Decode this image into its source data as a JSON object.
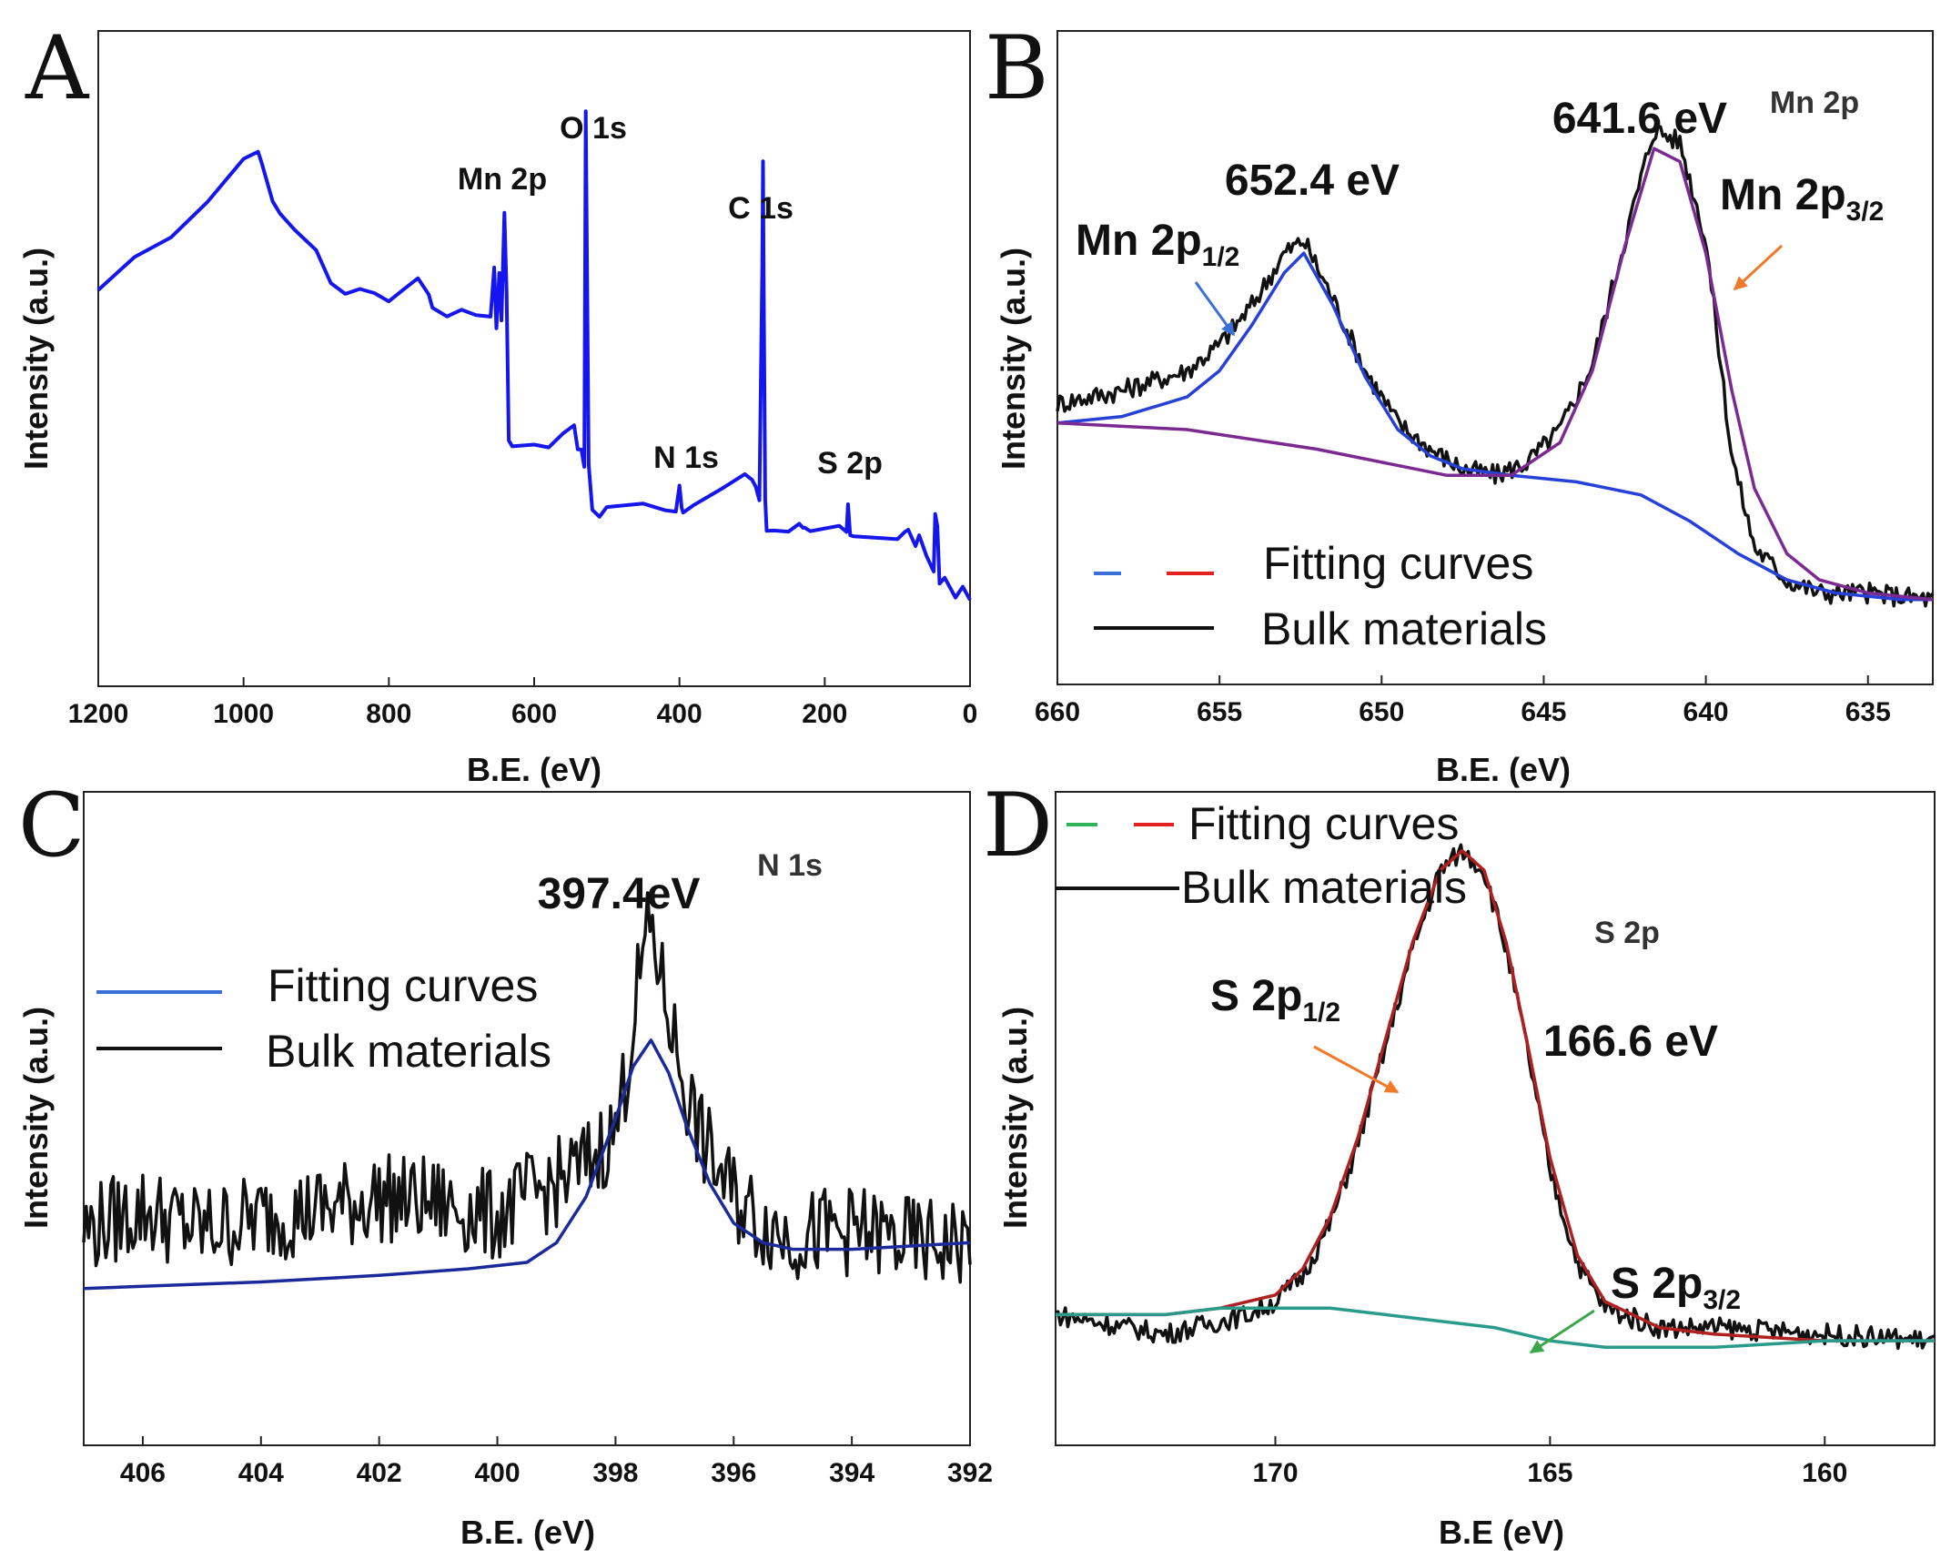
{
  "chart_data": [
    {
      "id": "A",
      "type": "line",
      "panel_label": "A",
      "xlabel": "B.E. (eV)",
      "ylabel": "Intensity (a.u.)",
      "xlim": [
        1200,
        0
      ],
      "ylim": [
        0,
        100
      ],
      "xticks": [
        "1200",
        "1000",
        "800",
        "600",
        "400",
        "200",
        "0"
      ],
      "color": "#1515ee",
      "peak_labels": [
        {
          "text": "Mn 2p",
          "x": 640,
          "y": 76
        },
        {
          "text": "O 1s",
          "x": 530,
          "y": 87
        },
        {
          "text": "C 1s",
          "x": 285,
          "y": 72
        },
        {
          "text": "N 1s",
          "x": 400,
          "y": 34
        },
        {
          "text": "S 2p",
          "x": 168,
          "y": 34
        }
      ],
      "series": [
        {
          "name": "Survey spectrum",
          "x": [
            1200,
            1150,
            1100,
            1050,
            1000,
            980,
            975,
            960,
            950,
            930,
            900,
            880,
            860,
            840,
            820,
            800,
            780,
            760,
            745,
            740,
            720,
            700,
            680,
            660,
            655,
            652,
            648,
            645,
            641,
            638,
            635,
            630,
            600,
            580,
            560,
            545,
            540,
            535,
            531,
            529,
            525,
            520,
            510,
            500,
            450,
            420,
            405,
            400,
            397,
            395,
            380,
            340,
            310,
            300,
            295,
            290,
            286,
            285,
            284,
            282,
            280,
            270,
            250,
            235,
            230,
            228,
            220,
            180,
            170,
            168,
            165,
            160,
            100,
            90,
            85,
            75,
            70,
            60,
            50,
            48,
            45,
            42,
            35,
            20,
            10,
            0
          ],
          "y": [
            60,
            65,
            69,
            74,
            80,
            82,
            80,
            74,
            72,
            70,
            67,
            61,
            60,
            61,
            60,
            59,
            61,
            62,
            60,
            58,
            57,
            57,
            57,
            56,
            64,
            55,
            63,
            56,
            72,
            60,
            38,
            37,
            37,
            37,
            38,
            40,
            36,
            36,
            33,
            88,
            34,
            27,
            26,
            27,
            28,
            27,
            27,
            31,
            27,
            27,
            28,
            30,
            32,
            31,
            30,
            28,
            64,
            80,
            60,
            28,
            24,
            24,
            24,
            25,
            24,
            24,
            24,
            24,
            23,
            28,
            23,
            23,
            23,
            23,
            24,
            21,
            23,
            20,
            18,
            26,
            24,
            16,
            16,
            14,
            15,
            13
          ]
        }
      ]
    },
    {
      "id": "B",
      "type": "line",
      "panel_label": "B",
      "region_label": "Mn 2p",
      "xlabel": "B.E. (eV)",
      "ylabel": "Intensity (a.u.)",
      "xlim": [
        660,
        633
      ],
      "ylim": [
        0,
        100
      ],
      "xticks": [
        "660",
        "655",
        "650",
        "645",
        "640",
        "635"
      ],
      "peaks": [
        {
          "position": "652.4 eV",
          "x": 652.4,
          "name_main": "Mn 2p",
          "name_sub": "1/2"
        },
        {
          "position": "641.6 eV",
          "x": 641.6,
          "name_main": "Mn 2p",
          "name_sub": "3/2"
        }
      ],
      "legend": [
        {
          "label": "Fitting curves",
          "colors": [
            "#3a6fd8",
            "#e52020"
          ]
        },
        {
          "label": "Bulk materials",
          "colors": [
            "#111111"
          ]
        }
      ],
      "series": [
        {
          "name": "Bulk materials",
          "color": "#111111",
          "noisy": true,
          "x": [
            660,
            658,
            656,
            655,
            654,
            653,
            652.4,
            651.5,
            650.5,
            649.5,
            648.5,
            647.5,
            646.5,
            645.5,
            644.5,
            643.5,
            642.5,
            641.6,
            640.8,
            640,
            639.2,
            638.5,
            637.5,
            636.5,
            635,
            633
          ],
          "y": [
            43,
            45,
            48,
            52,
            58,
            66,
            68,
            59,
            48,
            40,
            36,
            33,
            32,
            34,
            39,
            49,
            68,
            85,
            83,
            68,
            35,
            21,
            16,
            14,
            14,
            13
          ]
        },
        {
          "name": "Fitting curve (blue)",
          "color": "#2740d8",
          "x": [
            660,
            658,
            656,
            655,
            654,
            653,
            652.4,
            651.5,
            650.5,
            649.5,
            648.5,
            647.5,
            646,
            644,
            642,
            640.5,
            639,
            637.5,
            636,
            634,
            633
          ],
          "y": [
            40,
            41,
            44,
            48,
            55,
            63,
            66,
            58,
            47,
            39,
            35,
            33,
            32,
            31,
            29,
            25,
            20,
            16,
            14,
            13,
            13
          ]
        },
        {
          "name": "Fitting curve (purple)",
          "color": "#7a2a90",
          "x": [
            660,
            656,
            652,
            648,
            646,
            644.5,
            643.5,
            642.5,
            641.6,
            640.8,
            640,
            639.2,
            638.5,
            637.5,
            636.5,
            635,
            633
          ],
          "y": [
            40,
            39,
            36,
            32,
            32,
            37,
            48,
            67,
            82,
            80,
            66,
            45,
            30,
            20,
            16,
            14,
            13
          ]
        }
      ]
    },
    {
      "id": "C",
      "type": "line",
      "panel_label": "C",
      "region_label": "N 1s",
      "xlabel": "B.E. (eV)",
      "ylabel": "Intensity (a.u.)",
      "xlim": [
        407,
        392
      ],
      "ylim": [
        0,
        100
      ],
      "xticks": [
        "406",
        "404",
        "402",
        "400",
        "398",
        "396",
        "394",
        "392"
      ],
      "peaks": [
        {
          "position": "397.4eV",
          "x": 397.4
        }
      ],
      "legend": [
        {
          "label": "Fitting curves",
          "colors": [
            "#3a6fd8"
          ]
        },
        {
          "label": "Bulk materials",
          "colors": [
            "#111111"
          ]
        }
      ],
      "series": [
        {
          "name": "Bulk materials",
          "color": "#111111",
          "noisy": true,
          "x": [
            407,
            406,
            405,
            404,
            403,
            402,
            401,
            400,
            399.5,
            399,
            398.5,
            398,
            397.8,
            397.6,
            397.4,
            397.2,
            397,
            396.8,
            396.5,
            396,
            395.5,
            395,
            394,
            393,
            392
          ],
          "y": [
            33,
            36,
            33,
            35,
            36,
            38,
            37,
            35,
            38,
            40,
            43,
            48,
            58,
            72,
            80,
            70,
            62,
            54,
            46,
            38,
            34,
            32,
            33,
            31,
            31
          ]
        },
        {
          "name": "Fitting curve",
          "color": "#1a2a9a",
          "x": [
            407,
            404,
            402,
            400.5,
            399.5,
            399,
            398.5,
            398,
            397.7,
            397.4,
            397.1,
            396.8,
            396.4,
            396,
            395.5,
            395,
            394,
            392
          ],
          "y": [
            24,
            25,
            26,
            27,
            28,
            31,
            38,
            50,
            58,
            62,
            57,
            49,
            40,
            34,
            31,
            30,
            30,
            31
          ]
        }
      ]
    },
    {
      "id": "D",
      "type": "line",
      "panel_label": "D",
      "region_label": "S 2p",
      "xlabel": "B.E (eV)",
      "ylabel": "Intensity (a.u.)",
      "xlim": [
        174,
        158
      ],
      "ylim": [
        0,
        100
      ],
      "xticks": [
        "170",
        "165",
        "160"
      ],
      "peaks": [
        {
          "position": "166.6 eV",
          "x": 166.6,
          "name_main": "S 2p",
          "name_sub": "1/2"
        },
        {
          "position": "",
          "x": 165.4,
          "name_main": "S 2p",
          "name_sub": "3/2"
        }
      ],
      "legend": [
        {
          "label": "Fitting curves",
          "colors": [
            "#2fb35a",
            "#e52020"
          ]
        },
        {
          "label": "Bulk materials",
          "colors": [
            "#111111"
          ]
        }
      ],
      "series": [
        {
          "name": "Bulk materials",
          "color": "#111111",
          "noisy": true,
          "x": [
            174,
            172,
            170.5,
            170,
            169.5,
            169,
            168.5,
            168,
            167.5,
            167,
            166.6,
            166.2,
            165.8,
            165.4,
            165,
            164.5,
            164,
            163,
            162,
            160,
            158
          ],
          "y": [
            20,
            17,
            20,
            22,
            26,
            34,
            46,
            61,
            76,
            88,
            91,
            88,
            76,
            60,
            42,
            28,
            21,
            18,
            18,
            17,
            16
          ]
        },
        {
          "name": "Fitting curve (red)",
          "color": "#b02020",
          "x": [
            174,
            172,
            171,
            170,
            169.5,
            169,
            168.5,
            168,
            167.5,
            167,
            166.6,
            166.2,
            165.8,
            165.4,
            165,
            164.5,
            164,
            163,
            162,
            160,
            158
          ],
          "y": [
            20,
            20,
            21,
            23,
            27,
            35,
            47,
            62,
            77,
            88,
            91,
            88,
            77,
            61,
            44,
            29,
            22,
            18,
            17,
            16,
            16
          ]
        },
        {
          "name": "Fitting curve (green)",
          "color": "#2a9a8a",
          "x": [
            174,
            172,
            171,
            170,
            169,
            168,
            167,
            166,
            165,
            164,
            163,
            162,
            160,
            158
          ],
          "y": [
            20,
            20,
            21,
            21,
            21,
            20,
            19,
            18,
            16,
            15,
            15,
            15,
            16,
            16
          ]
        }
      ]
    }
  ]
}
